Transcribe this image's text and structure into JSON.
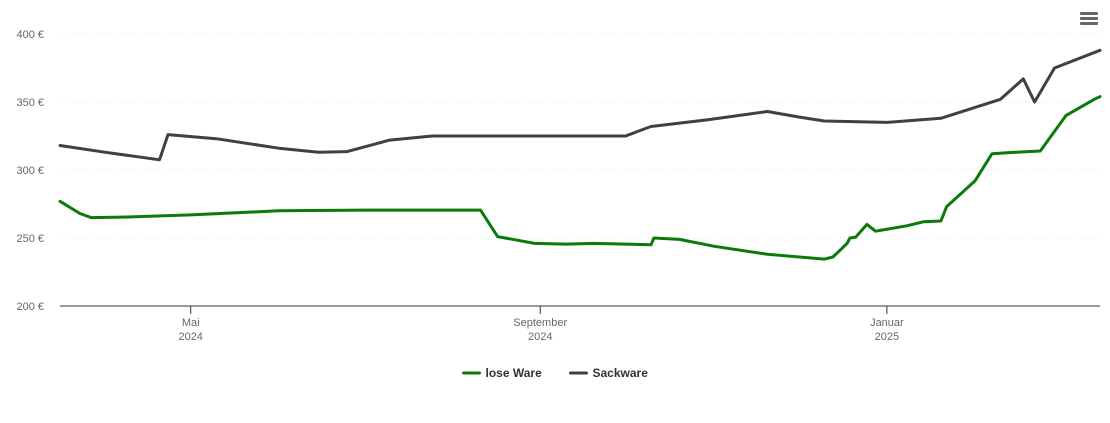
{
  "chart_data": {
    "type": "line",
    "ylim": [
      200,
      400
    ],
    "y_ticks": [
      200,
      250,
      300,
      350,
      400
    ],
    "y_unit": "€",
    "y_ticks_labels": [
      "200 €",
      "250 €",
      "300 €",
      "350 €",
      "400 €"
    ],
    "x_range": [
      "2024-03-16",
      "2025-03-17"
    ],
    "x_ticks": [
      {
        "date": "2024-05-01",
        "label1": "Mai",
        "label2": "2024"
      },
      {
        "date": "2024-09-01",
        "label1": "September",
        "label2": "2024"
      },
      {
        "date": "2025-01-01",
        "label1": "Januar",
        "label2": "2025"
      }
    ],
    "grid": true,
    "legend_position": "bottom-center",
    "series": [
      {
        "name": "lose Ware",
        "color": "#0a7a0a",
        "points": [
          [
            "2024-03-16",
            277
          ],
          [
            "2024-03-23",
            268
          ],
          [
            "2024-03-27",
            265
          ],
          [
            "2024-04-10",
            265.5
          ],
          [
            "2024-05-01",
            267
          ],
          [
            "2024-06-01",
            270
          ],
          [
            "2024-07-01",
            270.5
          ],
          [
            "2024-08-01",
            270.5
          ],
          [
            "2024-08-11",
            270.5
          ],
          [
            "2024-08-17",
            251
          ],
          [
            "2024-08-30",
            246
          ],
          [
            "2024-09-10",
            245.5
          ],
          [
            "2024-09-20",
            246
          ],
          [
            "2024-10-10",
            245
          ],
          [
            "2024-10-11",
            250
          ],
          [
            "2024-10-20",
            249
          ],
          [
            "2024-11-01",
            244
          ],
          [
            "2024-11-20",
            238
          ],
          [
            "2024-12-10",
            234.5
          ],
          [
            "2024-12-13",
            236
          ],
          [
            "2024-12-18",
            246
          ],
          [
            "2024-12-19",
            250
          ],
          [
            "2024-12-21",
            250.5
          ],
          [
            "2024-12-25",
            260
          ],
          [
            "2024-12-28",
            255
          ],
          [
            "2025-01-08",
            259
          ],
          [
            "2025-01-14",
            262
          ],
          [
            "2025-01-20",
            262.5
          ],
          [
            "2025-01-22",
            273
          ],
          [
            "2025-02-01",
            292
          ],
          [
            "2025-02-07",
            312
          ],
          [
            "2025-02-15",
            313
          ],
          [
            "2025-02-24",
            314
          ],
          [
            "2025-03-05",
            340
          ],
          [
            "2025-03-15",
            352
          ],
          [
            "2025-03-17",
            354
          ]
        ]
      },
      {
        "name": "Sackware",
        "color": "#3f3f46",
        "points": [
          [
            "2024-03-16",
            318
          ],
          [
            "2024-04-01",
            313
          ],
          [
            "2024-04-20",
            307.5
          ],
          [
            "2024-04-23",
            326
          ],
          [
            "2024-05-10",
            323
          ],
          [
            "2024-06-01",
            316
          ],
          [
            "2024-06-15",
            313
          ],
          [
            "2024-06-25",
            313.5
          ],
          [
            "2024-07-10",
            322
          ],
          [
            "2024-07-25",
            325
          ],
          [
            "2024-08-01",
            325
          ],
          [
            "2024-09-01",
            325
          ],
          [
            "2024-10-01",
            325
          ],
          [
            "2024-10-10",
            332
          ],
          [
            "2024-10-30",
            337
          ],
          [
            "2024-11-20",
            343
          ],
          [
            "2024-12-01",
            339
          ],
          [
            "2024-12-10",
            336
          ],
          [
            "2025-01-01",
            335
          ],
          [
            "2025-01-20",
            338
          ],
          [
            "2025-02-10",
            352
          ],
          [
            "2025-02-18",
            367
          ],
          [
            "2025-02-22",
            350
          ],
          [
            "2025-03-01",
            375
          ],
          [
            "2025-03-17",
            388
          ]
        ]
      }
    ]
  }
}
